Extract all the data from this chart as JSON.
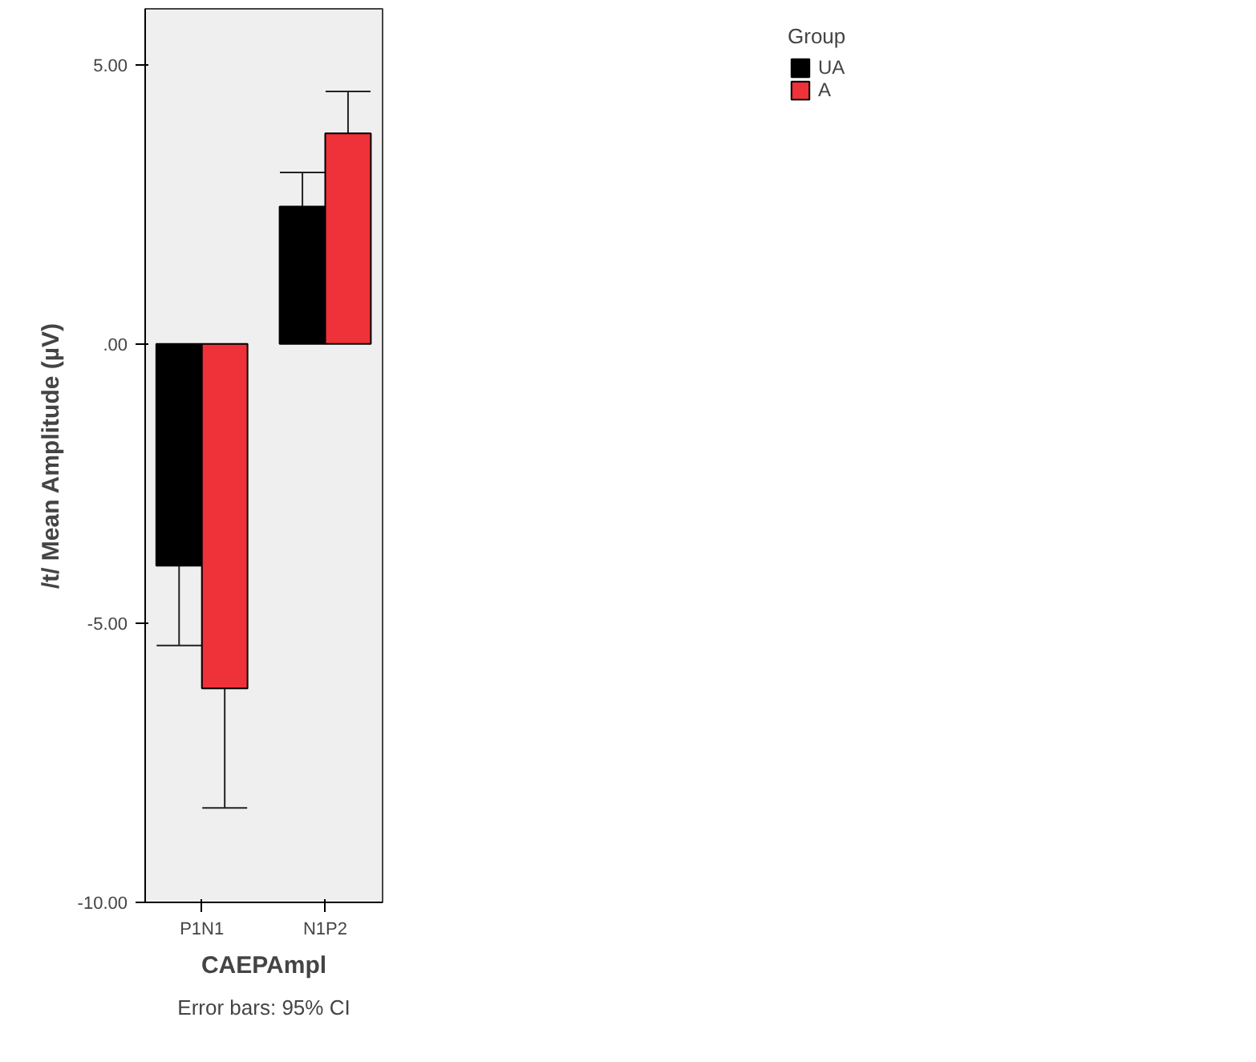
{
  "chart_data": {
    "type": "bar",
    "xlabel": "CAEPAmpl",
    "ylabel": "/t/ Mean Amplitude (µV)",
    "legend_title": "Group",
    "categories": [
      "P1N1",
      "N1P2"
    ],
    "series": [
      {
        "name": "UA",
        "color": "#000000",
        "values": [
          -3.97,
          2.46
        ],
        "errors": [
          1.43,
          0.61
        ]
      },
      {
        "name": "A",
        "color": "#ef3139",
        "values": [
          -6.17,
          3.77
        ],
        "errors": [
          2.14,
          0.75
        ]
      }
    ],
    "ylim": [
      -10,
      6
    ],
    "yticks": [
      {
        "value": -10,
        "label": "-10.00"
      },
      {
        "value": -5,
        "label": "-5.00"
      },
      {
        "value": 0,
        "label": ".00"
      },
      {
        "value": 5,
        "label": "5.00"
      }
    ],
    "grid": false,
    "legend": "right",
    "annotations": [
      "Error bars: 95% CI"
    ]
  }
}
